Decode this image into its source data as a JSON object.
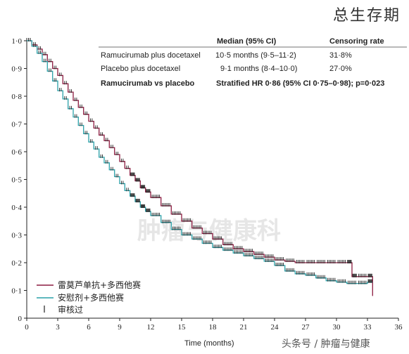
{
  "header": {
    "title": "总生存期"
  },
  "table": {
    "col_headers": [
      "Median (95% CI)",
      "Censoring rate"
    ],
    "rows": [
      {
        "label": "Ramucirumab plus docetaxel",
        "median": "10·5 months (9·5–11·2)",
        "censoring": "31·8%"
      },
      {
        "label": "Placebo plus docetaxel",
        "median": "9·1 months (8·4–10·0)",
        "censoring": "27·0%"
      }
    ],
    "comparison": {
      "label": "Ramucirumab vs placebo",
      "value": "Stratified HR 0·86 (95% CI 0·75–0·98); p=0·023"
    }
  },
  "watermarks": {
    "bottom_right": "头条号 / 肿瘤与健康",
    "center": "肿瘤与健康科"
  },
  "colors": {
    "ramucirumab": "#8c1c40",
    "placebo": "#2aa0a8",
    "axis": "#222222"
  },
  "chart_data": {
    "type": "line",
    "title": "总生存期",
    "xlabel": "Time (months)",
    "ylabel": "",
    "xlim": [
      0,
      36
    ],
    "ylim": [
      0,
      1
    ],
    "x_ticks": [
      0,
      3,
      6,
      9,
      12,
      15,
      18,
      21,
      24,
      27,
      30,
      33,
      36
    ],
    "y_ticks": [
      0,
      0.1,
      0.2,
      0.3,
      0.4,
      0.5,
      0.6,
      0.7,
      0.8,
      0.9,
      1.0
    ],
    "x_tick_labels": [
      "0",
      "3",
      "6",
      "9",
      "12",
      "15",
      "18",
      "21",
      "24",
      "27",
      "30",
      "33",
      "36"
    ],
    "y_tick_labels": [
      "0",
      "0·1",
      "0·2",
      "0·3",
      "0·4",
      "0·5",
      "0·6",
      "0·7",
      "0·8",
      "0·9",
      "1·0"
    ],
    "legend": {
      "placement": "bottom-left",
      "entries": [
        "雷莫芦单抗+多西他赛",
        "安慰剂+多西他赛"
      ],
      "censor_label": "审核过"
    },
    "series": [
      {
        "name": "雷莫芦单抗+多西他赛",
        "color": "#8c1c40",
        "x": [
          0,
          0.5,
          1,
          1.5,
          2,
          2.5,
          3,
          3.5,
          4,
          4.5,
          5,
          5.5,
          6,
          6.5,
          7,
          7.5,
          8,
          8.5,
          9,
          9.5,
          10,
          10.5,
          11,
          11.5,
          12,
          13,
          14,
          15,
          16,
          17,
          18,
          19,
          20,
          21,
          22,
          23,
          24,
          25,
          26,
          27,
          28,
          29,
          30,
          31,
          31.5,
          32,
          33,
          33.5
        ],
        "y": [
          1.0,
          0.985,
          0.97,
          0.95,
          0.925,
          0.9,
          0.875,
          0.845,
          0.815,
          0.785,
          0.76,
          0.735,
          0.71,
          0.685,
          0.66,
          0.64,
          0.615,
          0.59,
          0.565,
          0.54,
          0.515,
          0.495,
          0.47,
          0.455,
          0.435,
          0.405,
          0.375,
          0.35,
          0.325,
          0.305,
          0.285,
          0.265,
          0.25,
          0.24,
          0.23,
          0.22,
          0.21,
          0.205,
          0.2,
          0.2,
          0.2,
          0.2,
          0.2,
          0.2,
          0.15,
          0.15,
          0.15,
          0.08
        ]
      },
      {
        "name": "安慰剂+多西他赛",
        "color": "#2aa0a8",
        "x": [
          0,
          0.5,
          1,
          1.5,
          2,
          2.5,
          3,
          3.5,
          4,
          4.5,
          5,
          5.5,
          6,
          6.5,
          7,
          7.5,
          8,
          8.5,
          9,
          9.5,
          10,
          10.5,
          11,
          11.5,
          12,
          13,
          14,
          15,
          16,
          17,
          18,
          19,
          20,
          21,
          22,
          23,
          24,
          25,
          26,
          27,
          28,
          29,
          30,
          31,
          32,
          33,
          33.5
        ],
        "y": [
          1.0,
          0.98,
          0.955,
          0.925,
          0.89,
          0.855,
          0.82,
          0.79,
          0.755,
          0.725,
          0.695,
          0.665,
          0.635,
          0.61,
          0.58,
          0.56,
          0.535,
          0.51,
          0.485,
          0.46,
          0.44,
          0.42,
          0.4,
          0.385,
          0.37,
          0.345,
          0.32,
          0.3,
          0.285,
          0.27,
          0.255,
          0.245,
          0.235,
          0.225,
          0.215,
          0.205,
          0.19,
          0.17,
          0.16,
          0.155,
          0.145,
          0.135,
          0.13,
          0.125,
          0.125,
          0.13,
          0.13
        ]
      }
    ]
  }
}
